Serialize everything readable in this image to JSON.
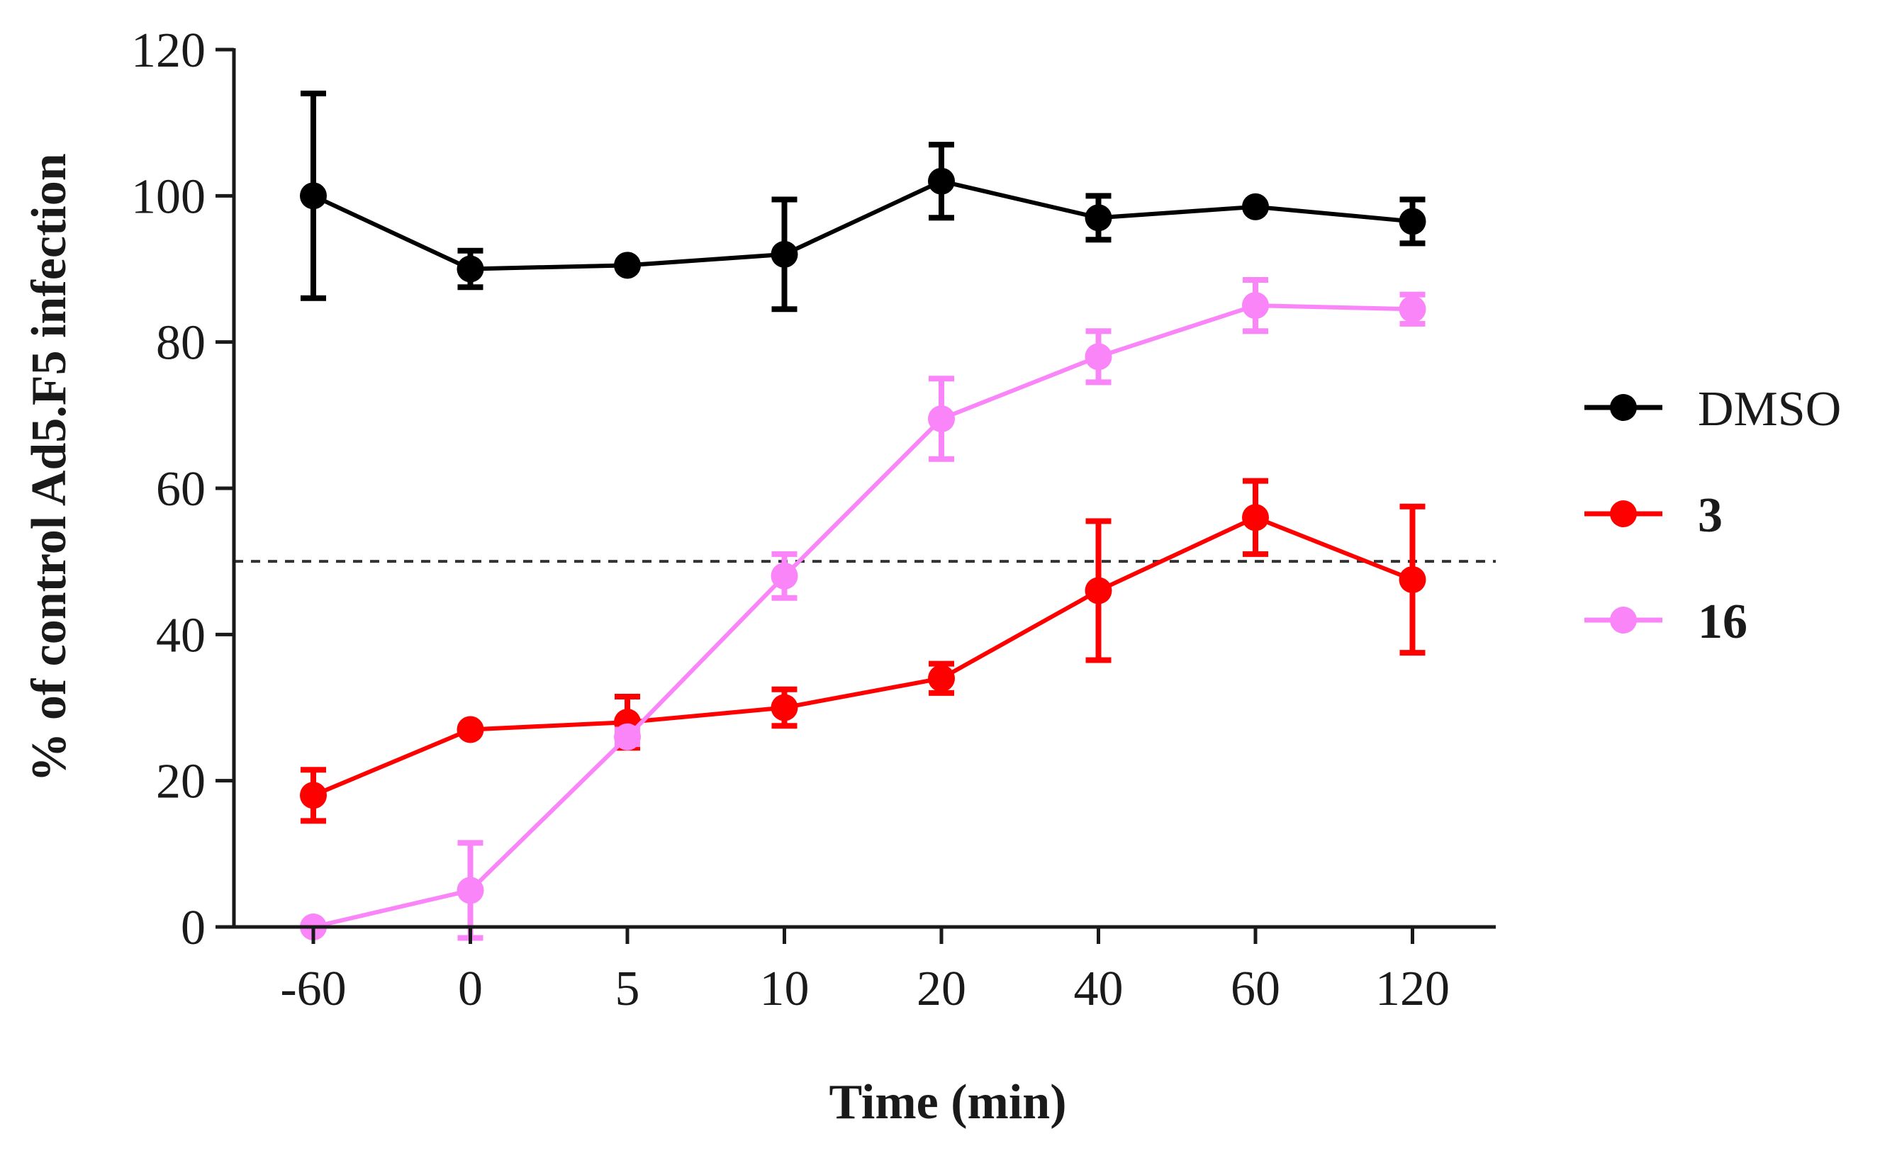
{
  "chart_data": {
    "type": "line",
    "title": "",
    "xlabel": "Time (min)",
    "ylabel": "% of control Ad5.F5 infection",
    "categories": [
      "-60",
      "0",
      "5",
      "10",
      "20",
      "40",
      "60",
      "120"
    ],
    "yticks": [
      "0",
      "20",
      "40",
      "60",
      "80",
      "100",
      "120"
    ],
    "ylim": [
      0,
      120
    ],
    "reference_line": {
      "y": 50,
      "style": "dashed",
      "color": "#333333"
    },
    "legend_position": "right",
    "series": [
      {
        "name": "DMSO",
        "color": "#000000",
        "label_bold": false,
        "values": [
          100,
          90,
          90.5,
          92,
          102,
          97,
          98.5,
          96.5
        ],
        "errors": [
          14,
          2.5,
          0,
          7.5,
          5,
          3,
          0,
          3
        ]
      },
      {
        "name": "3",
        "color": "#ff0000",
        "label_bold": true,
        "values": [
          18,
          27,
          28,
          30,
          34,
          46,
          56,
          47.5
        ],
        "errors": [
          3.5,
          0,
          3.5,
          2.5,
          2,
          9.5,
          5,
          10
        ]
      },
      {
        "name": "16",
        "color": "#f985f8",
        "label_bold": true,
        "values": [
          0,
          5,
          26,
          48,
          69.5,
          78,
          85,
          84.5
        ],
        "errors": [
          0,
          6.5,
          1,
          3,
          5.5,
          3.5,
          3.5,
          2
        ]
      }
    ]
  }
}
